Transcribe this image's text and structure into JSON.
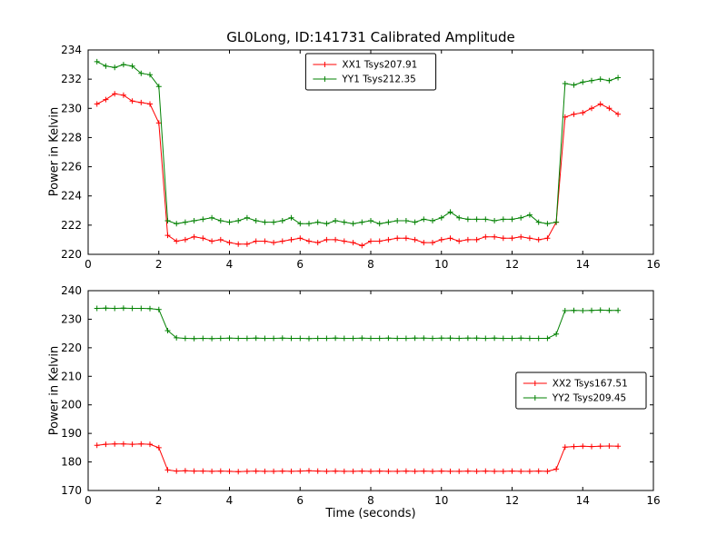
{
  "figure": {
    "title": "GL0Long, ID:141731 Calibrated Amplitude"
  },
  "chart_data": [
    {
      "type": "line",
      "title": "GL0Long, ID:141731 Calibrated Amplitude",
      "xlabel": "",
      "ylabel": "Power in Kelvin",
      "xlim": [
        0,
        16
      ],
      "ylim": [
        220,
        234
      ],
      "xtick_step": 2,
      "ytick_step": 2,
      "grid": false,
      "marker": "plus",
      "legend": {
        "position": "upper-center"
      },
      "x": [
        0.25,
        0.5,
        0.75,
        1,
        1.25,
        1.5,
        1.75,
        2,
        2.25,
        2.5,
        2.75,
        3,
        3.25,
        3.5,
        3.75,
        4,
        4.25,
        4.5,
        4.75,
        5,
        5.25,
        5.5,
        5.75,
        6,
        6.25,
        6.5,
        6.75,
        7,
        7.25,
        7.5,
        7.75,
        8,
        8.25,
        8.5,
        8.75,
        9,
        9.25,
        9.5,
        9.75,
        10,
        10.25,
        10.5,
        10.75,
        11,
        11.25,
        11.5,
        11.75,
        12,
        12.25,
        12.5,
        12.75,
        13,
        13.25,
        13.5,
        13.75,
        14,
        14.25,
        14.5,
        14.75,
        15
      ],
      "series": [
        {
          "name": "XX1 Tsys207.91",
          "color": "#ff0000",
          "values": [
            230.3,
            230.6,
            231.0,
            230.9,
            230.5,
            230.4,
            230.3,
            229.0,
            221.3,
            220.9,
            221.0,
            221.2,
            221.1,
            220.9,
            221.0,
            220.8,
            220.7,
            220.7,
            220.9,
            220.9,
            220.8,
            220.9,
            221.0,
            221.1,
            220.9,
            220.8,
            221.0,
            221.0,
            220.9,
            220.8,
            220.6,
            220.9,
            220.9,
            221.0,
            221.1,
            221.1,
            221.0,
            220.8,
            220.8,
            221.0,
            221.1,
            220.9,
            221.0,
            221.0,
            221.2,
            221.2,
            221.1,
            221.1,
            221.2,
            221.1,
            221.0,
            221.1,
            222.2,
            229.4,
            229.6,
            229.7,
            230.0,
            230.3,
            230.0,
            229.6
          ]
        },
        {
          "name": "YY1 Tsys212.35",
          "color": "#008000",
          "values": [
            233.2,
            232.9,
            232.8,
            233.0,
            232.9,
            232.4,
            232.3,
            231.5,
            222.3,
            222.1,
            222.2,
            222.3,
            222.4,
            222.5,
            222.3,
            222.2,
            222.3,
            222.5,
            222.3,
            222.2,
            222.2,
            222.3,
            222.5,
            222.1,
            222.1,
            222.2,
            222.1,
            222.3,
            222.2,
            222.1,
            222.2,
            222.3,
            222.1,
            222.2,
            222.3,
            222.3,
            222.2,
            222.4,
            222.3,
            222.5,
            222.9,
            222.5,
            222.4,
            222.4,
            222.4,
            222.3,
            222.4,
            222.4,
            222.5,
            222.7,
            222.2,
            222.1,
            222.2,
            231.7,
            231.6,
            231.8,
            231.9,
            232.0,
            231.9,
            232.1
          ]
        }
      ]
    },
    {
      "type": "line",
      "title": "",
      "xlabel": "Time (seconds)",
      "ylabel": "Power in Kelvin",
      "xlim": [
        0,
        16
      ],
      "ylim": [
        170,
        240
      ],
      "xtick_step": 2,
      "ytick_step": 10,
      "grid": false,
      "marker": "plus",
      "legend": {
        "position": "center-right"
      },
      "x": [
        0.25,
        0.5,
        0.75,
        1,
        1.25,
        1.5,
        1.75,
        2,
        2.25,
        2.5,
        2.75,
        3,
        3.25,
        3.5,
        3.75,
        4,
        4.25,
        4.5,
        4.75,
        5,
        5.25,
        5.5,
        5.75,
        6,
        6.25,
        6.5,
        6.75,
        7,
        7.25,
        7.5,
        7.75,
        8,
        8.25,
        8.5,
        8.75,
        9,
        9.25,
        9.5,
        9.75,
        10,
        10.25,
        10.5,
        10.75,
        11,
        11.25,
        11.5,
        11.75,
        12,
        12.25,
        12.5,
        12.75,
        13,
        13.25,
        13.5,
        13.75,
        14,
        14.25,
        14.5,
        14.75,
        15
      ],
      "series": [
        {
          "name": "XX2 Tsys167.51",
          "color": "#ff0000",
          "values": [
            185.8,
            186.2,
            186.3,
            186.3,
            186.2,
            186.3,
            186.2,
            185.0,
            177.2,
            176.8,
            176.9,
            176.8,
            176.8,
            176.7,
            176.8,
            176.7,
            176.6,
            176.7,
            176.8,
            176.7,
            176.7,
            176.8,
            176.7,
            176.8,
            176.9,
            176.8,
            176.7,
            176.8,
            176.7,
            176.7,
            176.8,
            176.7,
            176.8,
            176.7,
            176.7,
            176.8,
            176.7,
            176.8,
            176.7,
            176.8,
            176.7,
            176.7,
            176.8,
            176.7,
            176.8,
            176.7,
            176.7,
            176.8,
            176.7,
            176.7,
            176.8,
            176.7,
            177.5,
            185.2,
            185.4,
            185.5,
            185.4,
            185.5,
            185.6,
            185.5
          ]
        },
        {
          "name": "YY2 Tsys209.45",
          "color": "#008000",
          "values": [
            233.8,
            233.9,
            233.8,
            233.9,
            233.8,
            233.8,
            233.7,
            233.4,
            226.0,
            223.5,
            223.3,
            223.2,
            223.3,
            223.2,
            223.3,
            223.4,
            223.3,
            223.3,
            223.4,
            223.3,
            223.3,
            223.4,
            223.3,
            223.3,
            223.2,
            223.3,
            223.3,
            223.4,
            223.3,
            223.3,
            223.4,
            223.3,
            223.3,
            223.4,
            223.3,
            223.3,
            223.4,
            223.4,
            223.3,
            223.4,
            223.4,
            223.3,
            223.4,
            223.4,
            223.3,
            223.4,
            223.3,
            223.3,
            223.4,
            223.3,
            223.3,
            223.3,
            224.8,
            233.0,
            233.1,
            233.0,
            233.1,
            233.2,
            233.1,
            233.1
          ]
        }
      ]
    }
  ]
}
